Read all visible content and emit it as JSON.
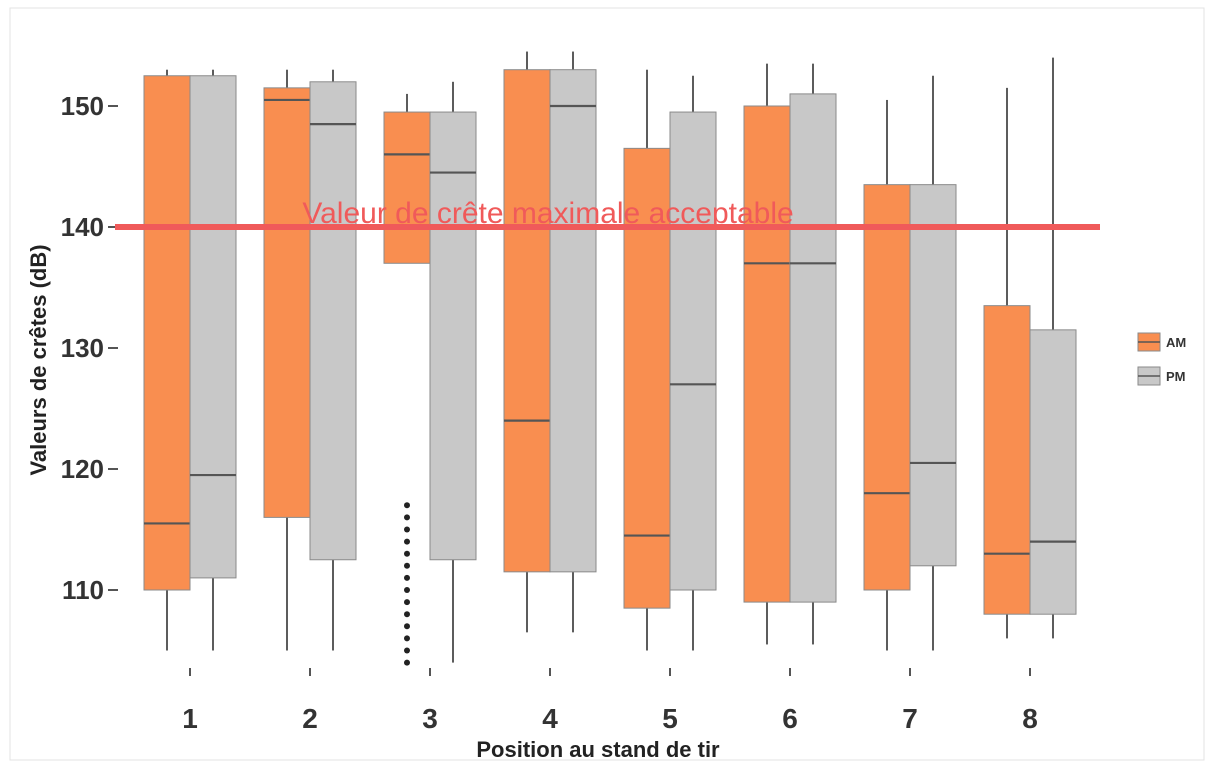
{
  "chart_data": {
    "type": "boxplot",
    "xlabel": "Position au stand de tir",
    "ylabel": "Valeurs de crêtes (dB)",
    "categories": [
      "1",
      "2",
      "3",
      "4",
      "5",
      "6",
      "7",
      "8"
    ],
    "ylim": [
      103,
      155
    ],
    "yticks": [
      110,
      120,
      130,
      140,
      150
    ],
    "grid": false,
    "legend_position": "right",
    "series": [
      {
        "name": "AM",
        "color": "#f98e50",
        "boxes": [
          {
            "whisker_low": 105,
            "q1": 110,
            "median": 115.5,
            "q3": 152.5,
            "whisker_high": 153
          },
          {
            "whisker_low": 105,
            "q1": 116,
            "median": 150.5,
            "q3": 151.5,
            "whisker_high": 153
          },
          {
            "whisker_low": 137,
            "q1": 137,
            "median": 146,
            "q3": 149.5,
            "whisker_high": 151,
            "outliers": [
              104,
              105,
              106,
              107,
              108,
              109,
              110,
              111,
              112,
              113,
              114,
              115,
              116,
              117
            ]
          },
          {
            "whisker_low": 106.5,
            "q1": 111.5,
            "median": 124,
            "q3": 153,
            "whisker_high": 154.5
          },
          {
            "whisker_low": 105,
            "q1": 108.5,
            "median": 114.5,
            "q3": 146.5,
            "whisker_high": 153
          },
          {
            "whisker_low": 105.5,
            "q1": 109,
            "median": 137,
            "q3": 150,
            "whisker_high": 153.5
          },
          {
            "whisker_low": 105,
            "q1": 110,
            "median": 118,
            "q3": 143.5,
            "whisker_high": 150.5
          },
          {
            "whisker_low": 106,
            "q1": 108,
            "median": 113,
            "q3": 133.5,
            "whisker_high": 151.5
          }
        ]
      },
      {
        "name": "PM",
        "color": "#c8c8c8",
        "boxes": [
          {
            "whisker_low": 105,
            "q1": 111,
            "median": 119.5,
            "q3": 152.5,
            "whisker_high": 153
          },
          {
            "whisker_low": 105,
            "q1": 112.5,
            "median": 148.5,
            "q3": 152,
            "whisker_high": 153
          },
          {
            "whisker_low": 104,
            "q1": 112.5,
            "median": 144.5,
            "q3": 149.5,
            "whisker_high": 152
          },
          {
            "whisker_low": 106.5,
            "q1": 111.5,
            "median": 150,
            "q3": 153,
            "whisker_high": 154.5
          },
          {
            "whisker_low": 105,
            "q1": 110,
            "median": 127,
            "q3": 149.5,
            "whisker_high": 152.5
          },
          {
            "whisker_low": 105.5,
            "q1": 109,
            "median": 137,
            "q3": 151,
            "whisker_high": 153.5
          },
          {
            "whisker_low": 105,
            "q1": 112,
            "median": 120.5,
            "q3": 143.5,
            "whisker_high": 152.5
          },
          {
            "whisker_low": 106,
            "q1": 108,
            "median": 114,
            "q3": 131.5,
            "whisker_high": 154
          }
        ]
      }
    ],
    "reference_line": {
      "value": 140,
      "label": "Valeur de crête maximale acceptable",
      "color": "#f05a5a"
    }
  }
}
